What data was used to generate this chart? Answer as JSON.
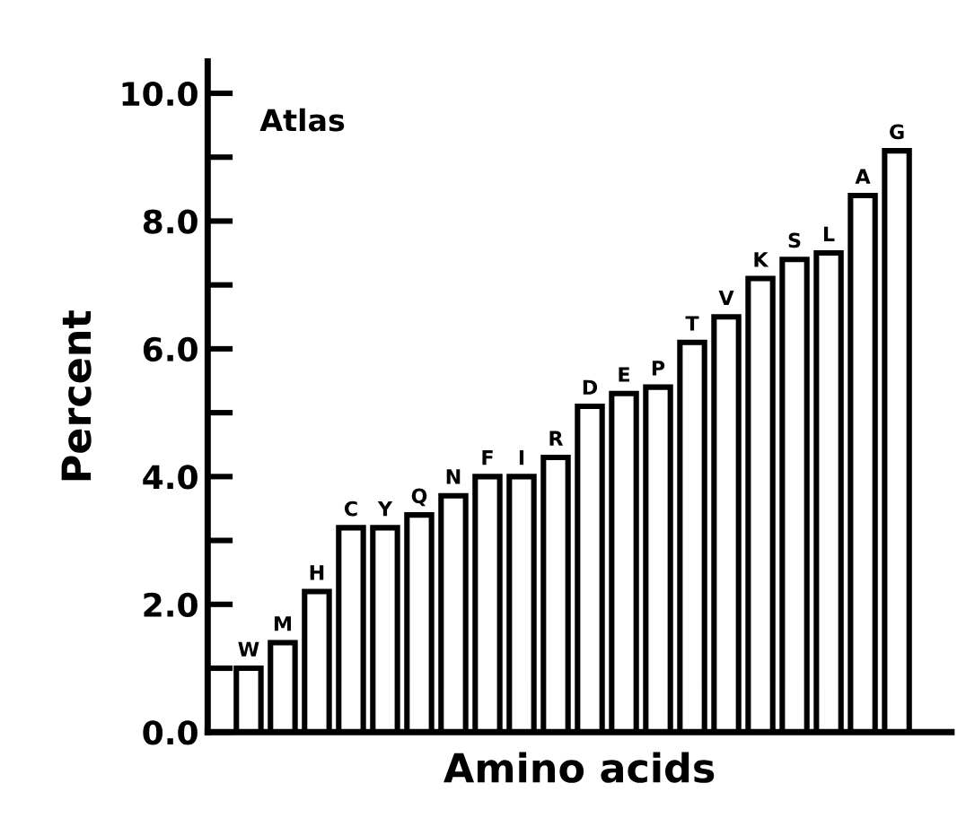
{
  "chart_data": {
    "type": "bar",
    "categories": [
      "W",
      "M",
      "H",
      "C",
      "Y",
      "Q",
      "N",
      "F",
      "I",
      "R",
      "D",
      "E",
      "P",
      "T",
      "V",
      "K",
      "S",
      "L",
      "A",
      "G"
    ],
    "values": [
      1.0,
      1.4,
      2.2,
      3.2,
      3.2,
      3.4,
      3.7,
      4.0,
      4.0,
      4.3,
      5.1,
      5.3,
      5.4,
      6.1,
      6.5,
      7.1,
      7.4,
      7.5,
      8.4,
      9.1
    ],
    "color": "#ffffff",
    "xlabel": "Amino acids",
    "ylabel": "Percent",
    "annotations": [
      "Atlas"
    ],
    "ylim": [
      0,
      10.5
    ],
    "yticks": [
      {
        "value": 0,
        "label": "0.0"
      },
      {
        "value": 1,
        "label": null
      },
      {
        "value": 2,
        "label": "2.0"
      },
      {
        "value": 3,
        "label": null
      },
      {
        "value": 4,
        "label": "4.0"
      },
      {
        "value": 5,
        "label": null
      },
      {
        "value": 6,
        "label": "6.0"
      },
      {
        "value": 7,
        "label": null
      },
      {
        "value": 8,
        "label": "8.0"
      },
      {
        "value": 9,
        "label": null
      },
      {
        "value": 10,
        "label": "10.0"
      }
    ],
    "grid": false,
    "legend": false
  }
}
